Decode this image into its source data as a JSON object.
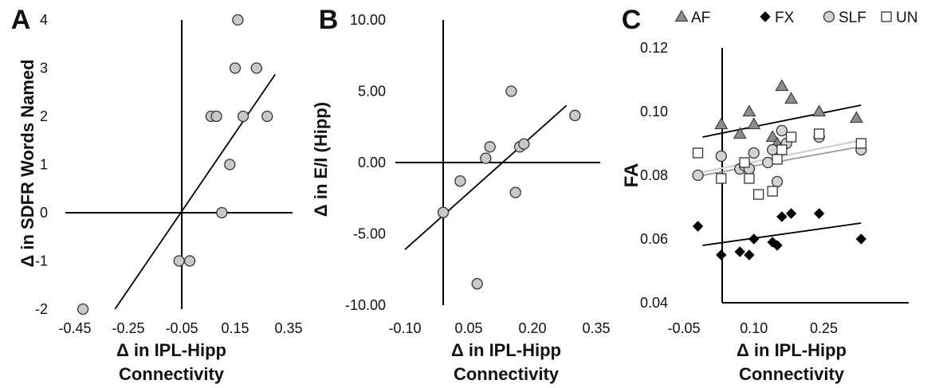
{
  "chart_data": [
    {
      "type": "scatter",
      "panel": "A",
      "xlabel": [
        "Δ in IPL-Hipp",
        "Connectivity"
      ],
      "ylabel": "Δ in SDFR Words Named",
      "xlim": [
        -0.45,
        0.35
      ],
      "ylim": [
        -2,
        4
      ],
      "x_ticks": [
        "-0.45",
        "-0.25",
        "-0.05",
        "0.15",
        "0.35"
      ],
      "y_ticks": [
        "-2",
        "-1",
        "0",
        "1",
        "2",
        "3",
        "4"
      ],
      "points": [
        {
          "x": -0.42,
          "y": -2
        },
        {
          "x": -0.06,
          "y": -1
        },
        {
          "x": -0.02,
          "y": -1
        },
        {
          "x": 0.06,
          "y": 2
        },
        {
          "x": 0.08,
          "y": 2
        },
        {
          "x": 0.1,
          "y": 0
        },
        {
          "x": 0.13,
          "y": 1
        },
        {
          "x": 0.15,
          "y": 3
        },
        {
          "x": 0.16,
          "y": 4
        },
        {
          "x": 0.18,
          "y": 2
        },
        {
          "x": 0.23,
          "y": 3
        },
        {
          "x": 0.27,
          "y": 2
        }
      ],
      "fit": {
        "x1": -0.3,
        "y1": -2,
        "x2": 0.3,
        "y2": 2.87
      }
    },
    {
      "type": "scatter",
      "panel": "B",
      "xlabel": [
        "Δ in IPL-Hipp",
        "Connectivity"
      ],
      "ylabel": "Δ in E/I (Hipp)",
      "xlim": [
        -0.1,
        0.35
      ],
      "ylim": [
        -10,
        10
      ],
      "x_ticks": [
        "-0.10",
        "0.05",
        "0.20",
        "0.35"
      ],
      "y_ticks": [
        "-10.00",
        "-5.00",
        "0.00",
        "5.00",
        "10.00"
      ],
      "points": [
        {
          "x": -0.01,
          "y": -3.5
        },
        {
          "x": 0.03,
          "y": -1.3
        },
        {
          "x": 0.07,
          "y": -8.5
        },
        {
          "x": 0.09,
          "y": 0.3
        },
        {
          "x": 0.1,
          "y": 1.1
        },
        {
          "x": 0.15,
          "y": 5.0
        },
        {
          "x": 0.16,
          "y": -2.1
        },
        {
          "x": 0.17,
          "y": 1.1
        },
        {
          "x": 0.18,
          "y": 1.3
        },
        {
          "x": 0.3,
          "y": 3.3
        }
      ],
      "fit": {
        "x1": -0.1,
        "y1": -6.1,
        "x2": 0.28,
        "y2": 4.0
      }
    },
    {
      "type": "scatter",
      "panel": "C",
      "xlabel": [
        "Δ in IPL-Hipp",
        "Connectivity"
      ],
      "ylabel": "FA",
      "xlim": [
        -0.05,
        0.35
      ],
      "ylim": [
        0.04,
        0.12
      ],
      "x_ticks": [
        "-0.05",
        "0.10",
        "0.25"
      ],
      "y_ticks": [
        "0.04",
        "0.06",
        "0.08",
        "0.10",
        "0.12"
      ],
      "legend": [
        {
          "name": "AF",
          "marker": "triangle"
        },
        {
          "name": "FX",
          "marker": "diamond"
        },
        {
          "name": "SLF",
          "marker": "circle"
        },
        {
          "name": "UN",
          "marker": "square"
        }
      ],
      "legend_position": "top",
      "series": [
        {
          "name": "AF",
          "marker": "triangle",
          "color": "#8c8c8c",
          "points": [
            {
              "x": 0.03,
              "y": 0.096
            },
            {
              "x": 0.07,
              "y": 0.093
            },
            {
              "x": 0.09,
              "y": 0.1
            },
            {
              "x": 0.1,
              "y": 0.096
            },
            {
              "x": 0.14,
              "y": 0.092
            },
            {
              "x": 0.15,
              "y": 0.09
            },
            {
              "x": 0.16,
              "y": 0.108
            },
            {
              "x": 0.18,
              "y": 0.104
            },
            {
              "x": 0.24,
              "y": 0.1
            },
            {
              "x": 0.32,
              "y": 0.098
            }
          ],
          "fit": {
            "x1": -0.01,
            "y1": 0.092,
            "x2": 0.33,
            "y2": 0.102
          }
        },
        {
          "name": "FX",
          "marker": "diamond",
          "color": "#000000",
          "points": [
            {
              "x": -0.02,
              "y": 0.064
            },
            {
              "x": 0.03,
              "y": 0.055
            },
            {
              "x": 0.07,
              "y": 0.056
            },
            {
              "x": 0.09,
              "y": 0.055
            },
            {
              "x": 0.1,
              "y": 0.06
            },
            {
              "x": 0.14,
              "y": 0.059
            },
            {
              "x": 0.15,
              "y": 0.058
            },
            {
              "x": 0.16,
              "y": 0.067
            },
            {
              "x": 0.18,
              "y": 0.068
            },
            {
              "x": 0.24,
              "y": 0.068
            },
            {
              "x": 0.33,
              "y": 0.06
            }
          ],
          "fit": {
            "x1": -0.01,
            "y1": 0.058,
            "x2": 0.33,
            "y2": 0.065
          }
        },
        {
          "name": "SLF",
          "marker": "circle",
          "color": "#d3d3d3",
          "points": [
            {
              "x": -0.02,
              "y": 0.08
            },
            {
              "x": 0.03,
              "y": 0.086
            },
            {
              "x": 0.07,
              "y": 0.082
            },
            {
              "x": 0.08,
              "y": 0.083
            },
            {
              "x": 0.09,
              "y": 0.082
            },
            {
              "x": 0.1,
              "y": 0.087
            },
            {
              "x": 0.13,
              "y": 0.084
            },
            {
              "x": 0.14,
              "y": 0.088
            },
            {
              "x": 0.15,
              "y": 0.078
            },
            {
              "x": 0.16,
              "y": 0.094
            },
            {
              "x": 0.17,
              "y": 0.09
            },
            {
              "x": 0.24,
              "y": 0.092
            },
            {
              "x": 0.33,
              "y": 0.088
            }
          ],
          "fit": {
            "x1": -0.01,
            "y1": 0.08,
            "x2": 0.33,
            "y2": 0.089
          }
        },
        {
          "name": "UN",
          "marker": "square",
          "color": "#ffffff",
          "points": [
            {
              "x": -0.02,
              "y": 0.087
            },
            {
              "x": 0.03,
              "y": 0.079
            },
            {
              "x": 0.08,
              "y": 0.084
            },
            {
              "x": 0.09,
              "y": 0.079
            },
            {
              "x": 0.11,
              "y": 0.074
            },
            {
              "x": 0.14,
              "y": 0.075
            },
            {
              "x": 0.15,
              "y": 0.085
            },
            {
              "x": 0.16,
              "y": 0.088
            },
            {
              "x": 0.18,
              "y": 0.092
            },
            {
              "x": 0.24,
              "y": 0.093
            },
            {
              "x": 0.33,
              "y": 0.09
            }
          ],
          "fit": {
            "x1": -0.01,
            "y1": 0.081,
            "x2": 0.33,
            "y2": 0.091
          }
        }
      ]
    }
  ]
}
